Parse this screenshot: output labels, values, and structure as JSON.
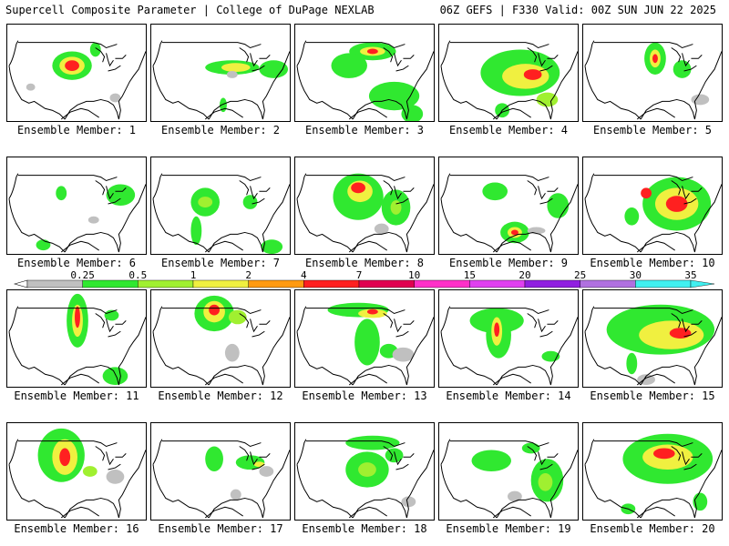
{
  "header": {
    "title_left": "Supercell Composite Parameter | College of DuPage NEXLAB",
    "title_right": "06Z GEFS | F330 Valid: 00Z SUN JUN 22 2025"
  },
  "colorbar": {
    "ticks": [
      "0.25",
      "0.5",
      "1",
      "2",
      "4",
      "7",
      "10",
      "15",
      "20",
      "25",
      "30",
      "35"
    ],
    "colors": [
      "#c0c0c0",
      "#30e830",
      "#a0f030",
      "#f0f040",
      "#ff9a10",
      "#ff2020",
      "#e00050",
      "#ff30c8",
      "#e040f0",
      "#9020e0",
      "#b070e0",
      "#40f0f0"
    ]
  },
  "members": [
    {
      "label": "Ensemble Member: 1"
    },
    {
      "label": "Ensemble Member: 2"
    },
    {
      "label": "Ensemble Member: 3"
    },
    {
      "label": "Ensemble Member: 4"
    },
    {
      "label": "Ensemble Member: 5"
    },
    {
      "label": "Ensemble Member: 6"
    },
    {
      "label": "Ensemble Member: 7"
    },
    {
      "label": "Ensemble Member: 8"
    },
    {
      "label": "Ensemble Member: 9"
    },
    {
      "label": "Ensemble Member: 10"
    },
    {
      "label": "Ensemble Member: 11"
    },
    {
      "label": "Ensemble Member: 12"
    },
    {
      "label": "Ensemble Member: 13"
    },
    {
      "label": "Ensemble Member: 14"
    },
    {
      "label": "Ensemble Member: 15"
    },
    {
      "label": "Ensemble Member: 16"
    },
    {
      "label": "Ensemble Member: 17"
    },
    {
      "label": "Ensemble Member: 18"
    },
    {
      "label": "Ensemble Member: 19"
    },
    {
      "label": "Ensemble Member: 20"
    }
  ]
}
